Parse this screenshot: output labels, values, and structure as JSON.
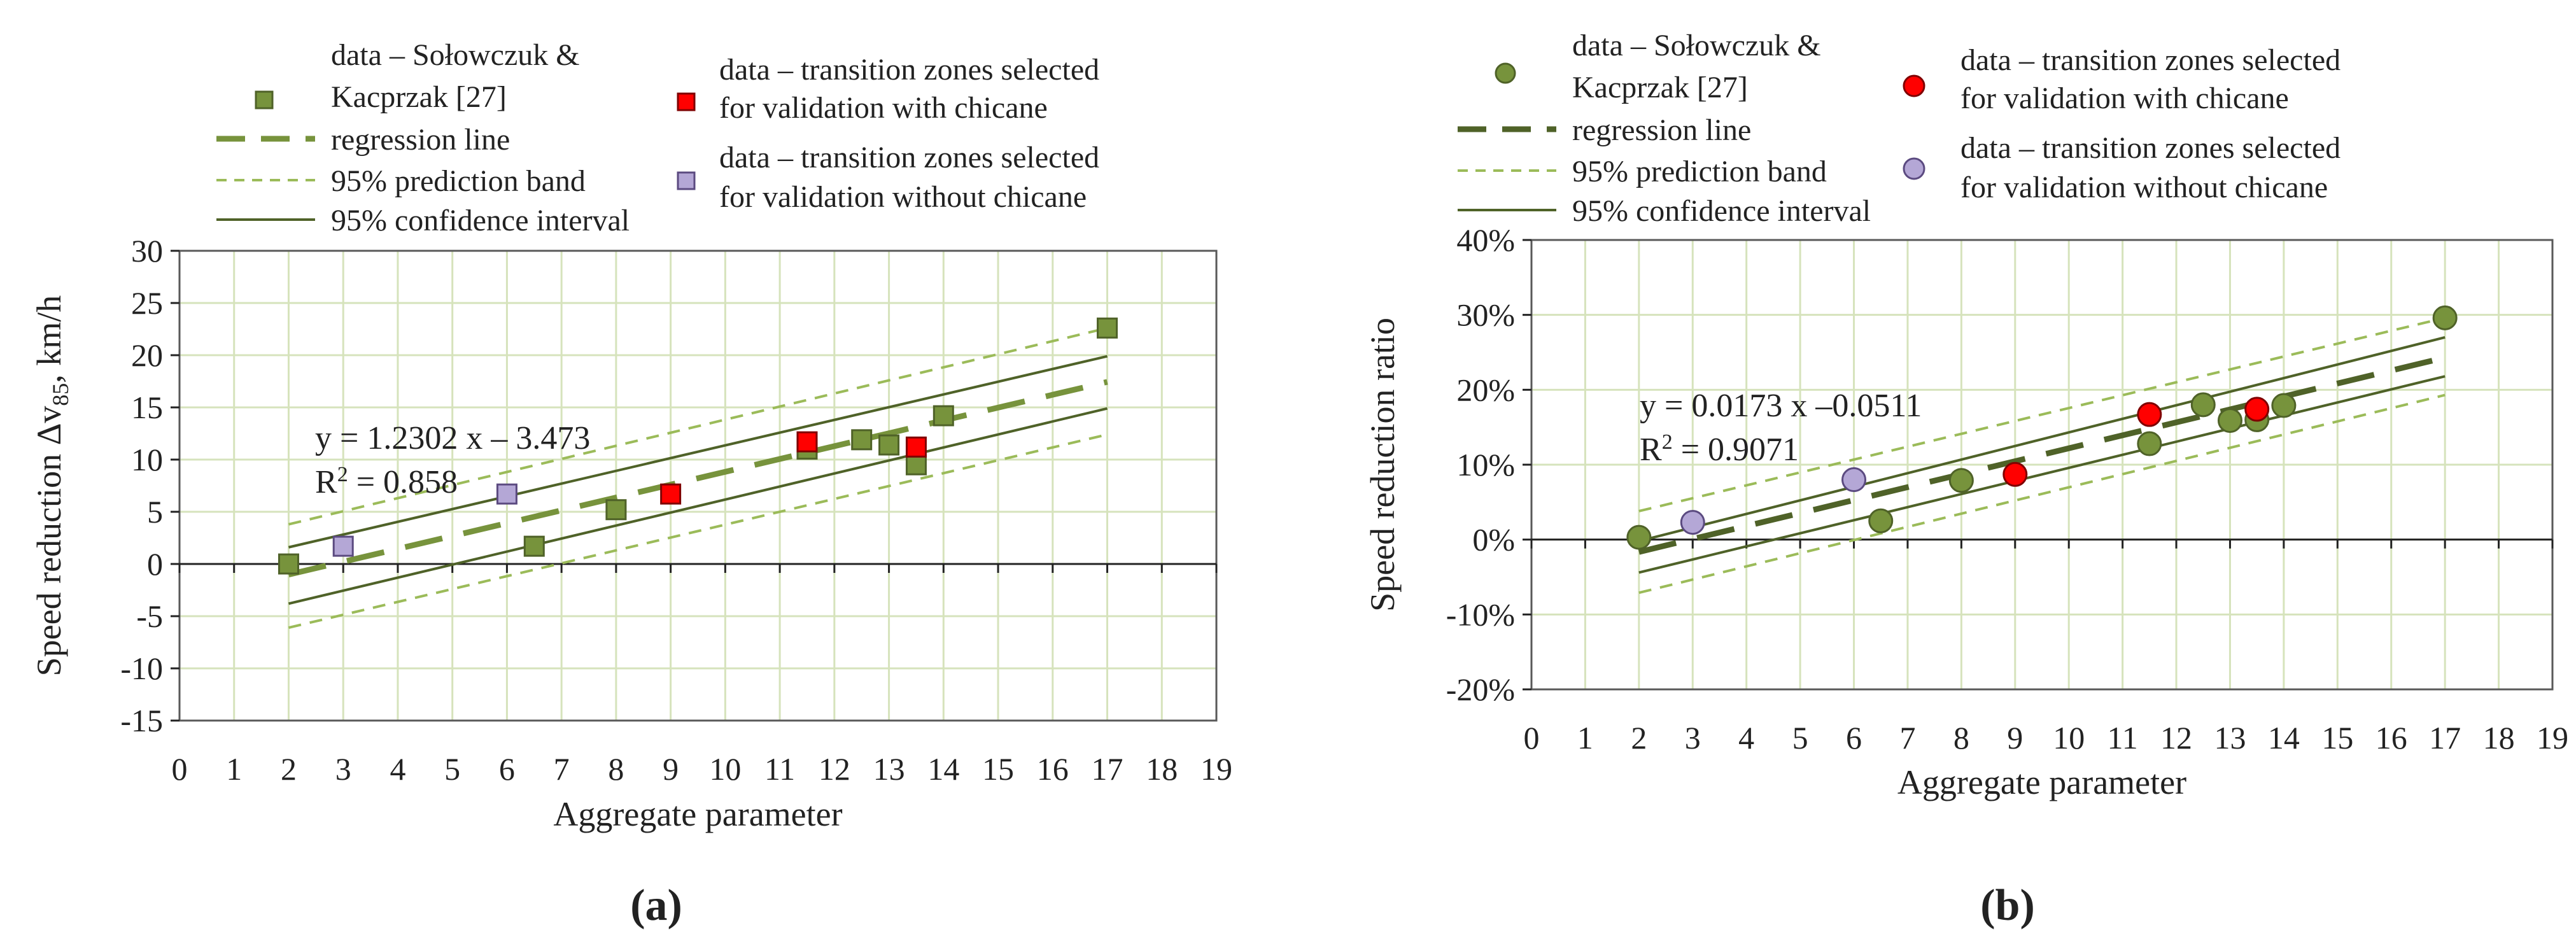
{
  "chart_data": [
    {
      "type": "scatter",
      "panel_label": "(a)",
      "xlabel": "Aggregate parameter",
      "ylabel_prefix": "Speed reduction  Δv",
      "ylabel_subscript": "85",
      "ylabel_suffix": ", km/h",
      "xlim": [
        0,
        19
      ],
      "ylim": [
        -15,
        30
      ],
      "xticks": [
        0,
        1,
        2,
        3,
        4,
        5,
        6,
        7,
        8,
        9,
        10,
        11,
        12,
        13,
        14,
        15,
        16,
        17,
        18,
        19
      ],
      "yticks": [
        -15,
        -10,
        -5,
        0,
        5,
        10,
        15,
        20,
        25,
        30
      ],
      "ytick_labels": [
        "-15",
        "-10",
        "-5",
        "0",
        "5",
        "10",
        "15",
        "20",
        "25",
        "30"
      ],
      "marker": "square",
      "equation": "y = 1.2302 x – 3.473",
      "r2_prefix": "R",
      "r2_sup": "2",
      "r2_value": " = 0.858",
      "legend": {
        "data": "data – Sołowczuk &",
        "data_line2": "Kacprzak [27]",
        "regression": "regression line",
        "prediction": "95% prediction band",
        "confidence": "95% confidence interval",
        "chicane": "data – transition zones selected",
        "chicane_line2": "for validation with chicane",
        "no_chicane": "data – transition zones selected",
        "no_chicane_line2": "for validation without chicane"
      },
      "series": [
        {
          "name": "data – Sołowczuk & Kacprzak [27]",
          "x": [
            2,
            6.5,
            8,
            11.5,
            12.5,
            13,
            13.5,
            14,
            17
          ],
          "y": [
            0,
            1.7,
            5.2,
            11,
            11.9,
            11.4,
            9.5,
            14.2,
            22.6
          ]
        },
        {
          "name": "with chicane",
          "x": [
            9,
            11.5,
            13.5
          ],
          "y": [
            6.7,
            11.7,
            11.2
          ]
        },
        {
          "name": "without chicane",
          "x": [
            3,
            6
          ],
          "y": [
            1.7,
            6.7
          ]
        }
      ],
      "regression": {
        "slope": 1.2302,
        "intercept": -3.473,
        "x_range": [
          2,
          17
        ]
      },
      "confidence_band": {
        "lower": [
          [
            2,
            -3.8
          ],
          [
            17,
            14.9
          ]
        ],
        "upper": [
          [
            2,
            1.6
          ],
          [
            17,
            19.9
          ]
        ]
      },
      "prediction_band": {
        "lower": [
          [
            2,
            -6.1
          ],
          [
            17,
            12.4
          ]
        ],
        "upper": [
          [
            2,
            3.8
          ],
          [
            17,
            22.6
          ]
        ]
      }
    },
    {
      "type": "scatter",
      "panel_label": "(b)",
      "xlabel": "Aggregate parameter",
      "ylabel": "Speed reduction  ratio",
      "xlim": [
        0,
        19
      ],
      "ylim": [
        -20,
        40
      ],
      "xticks": [
        0,
        1,
        2,
        3,
        4,
        5,
        6,
        7,
        8,
        9,
        10,
        11,
        12,
        13,
        14,
        15,
        16,
        17,
        18,
        19
      ],
      "yticks": [
        -20,
        -10,
        0,
        10,
        20,
        30,
        40
      ],
      "ytick_labels": [
        "-20%",
        "-10%",
        "0%",
        "10%",
        "20%",
        "30%",
        "40%"
      ],
      "marker": "circle",
      "equation": "y = 0.0173 x –0.0511",
      "r2_prefix": "R",
      "r2_sup": "2",
      "r2_value": " = 0.9071",
      "legend": {
        "data": "data – Sołowczuk &",
        "data_line2": "Kacprzak [27]",
        "regression": "regression line",
        "prediction": "95% prediction band",
        "confidence": "95% confidence interval",
        "chicane": "data – transition zones selected",
        "chicane_line2": "for validation with chicane",
        "no_chicane": "data – transition zones selected",
        "no_chicane_line2": "for validation without chicane"
      },
      "series": [
        {
          "name": "data – Sołowczuk & Kacprzak [27]",
          "x": [
            2,
            6.5,
            8,
            11.5,
            12.5,
            13,
            13.5,
            14,
            17
          ],
          "y": [
            0.3,
            2.5,
            7.9,
            12.8,
            18,
            15.9,
            16,
            17.9,
            29.6
          ]
        },
        {
          "name": "with chicane",
          "x": [
            9,
            11.5,
            13.5
          ],
          "y": [
            8.7,
            16.7,
            17.4
          ]
        },
        {
          "name": "without chicane",
          "x": [
            3,
            6
          ],
          "y": [
            2.3,
            8
          ]
        }
      ],
      "regression": {
        "slope": 1.73,
        "intercept": -5.11,
        "x_range": [
          2,
          17
        ]
      },
      "confidence_band": {
        "lower": [
          [
            2,
            -4.4
          ],
          [
            17,
            21.8
          ]
        ],
        "upper": [
          [
            2,
            -0.2
          ],
          [
            17,
            27
          ]
        ]
      },
      "prediction_band": {
        "lower": [
          [
            2,
            -7.1
          ],
          [
            17,
            19.3
          ]
        ],
        "upper": [
          [
            2,
            3.8
          ],
          [
            17,
            29.6
          ]
        ]
      }
    }
  ],
  "colors": {
    "data_fill_a": "#77933c",
    "data_edge_a": "#4f6228",
    "data_fill_b": "#77933c",
    "data_edge_b": "#4f6228",
    "chicane": "#ff0000",
    "no_chicane": "#b4a7d6",
    "regression_a": "#77933c",
    "regression_b": "#4f6228",
    "prediction": "#9bbb59",
    "confidence": "#4f6228",
    "grid": "#d6e3bc",
    "axis": "#595959"
  }
}
